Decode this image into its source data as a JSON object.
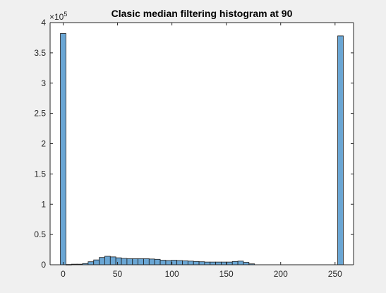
{
  "chart_data": {
    "type": "bar",
    "title": "Clasic median filtering histogram at 90",
    "xlabel": "",
    "ylabel": "",
    "xlim": [
      -12,
      267
    ],
    "ylim": [
      0,
      4
    ],
    "y_exponent_label": "×10",
    "y_exponent_power": "5",
    "x_ticks": [
      "0",
      "50",
      "100",
      "150",
      "200",
      "250"
    ],
    "x_tick_values": [
      0,
      50,
      100,
      150,
      200,
      250
    ],
    "y_ticks": [
      "0",
      "0.5",
      "1",
      "1.5",
      "2",
      "2.5",
      "3",
      "3.5",
      "4"
    ],
    "y_tick_values": [
      0,
      0.5,
      1,
      1.5,
      2,
      2.5,
      3,
      3.5,
      4
    ],
    "bin_width": 5.1,
    "bins": [
      {
        "x0": -2.55,
        "value": 3.82
      },
      {
        "x0": 2.55,
        "value": 0.005
      },
      {
        "x0": 7.65,
        "value": 0.01
      },
      {
        "x0": 12.75,
        "value": 0.01
      },
      {
        "x0": 17.85,
        "value": 0.02
      },
      {
        "x0": 22.95,
        "value": 0.05
      },
      {
        "x0": 28.05,
        "value": 0.08
      },
      {
        "x0": 33.15,
        "value": 0.12
      },
      {
        "x0": 38.25,
        "value": 0.14
      },
      {
        "x0": 43.35,
        "value": 0.13
      },
      {
        "x0": 48.45,
        "value": 0.115
      },
      {
        "x0": 53.55,
        "value": 0.105
      },
      {
        "x0": 58.65,
        "value": 0.1
      },
      {
        "x0": 63.75,
        "value": 0.1
      },
      {
        "x0": 68.85,
        "value": 0.1
      },
      {
        "x0": 73.95,
        "value": 0.1
      },
      {
        "x0": 79.05,
        "value": 0.095
      },
      {
        "x0": 84.15,
        "value": 0.09
      },
      {
        "x0": 89.25,
        "value": 0.075
      },
      {
        "x0": 94.35,
        "value": 0.07
      },
      {
        "x0": 99.45,
        "value": 0.075
      },
      {
        "x0": 104.55,
        "value": 0.07
      },
      {
        "x0": 109.65,
        "value": 0.065
      },
      {
        "x0": 114.75,
        "value": 0.06
      },
      {
        "x0": 119.85,
        "value": 0.055
      },
      {
        "x0": 124.95,
        "value": 0.05
      },
      {
        "x0": 130.05,
        "value": 0.045
      },
      {
        "x0": 135.15,
        "value": 0.045
      },
      {
        "x0": 140.25,
        "value": 0.045
      },
      {
        "x0": 145.35,
        "value": 0.045
      },
      {
        "x0": 150.45,
        "value": 0.045
      },
      {
        "x0": 155.55,
        "value": 0.055
      },
      {
        "x0": 160.65,
        "value": 0.06
      },
      {
        "x0": 165.75,
        "value": 0.04
      },
      {
        "x0": 170.85,
        "value": 0.015
      },
      {
        "x0": 252.45,
        "value": 3.78
      }
    ],
    "bar_color": "#6aa6d4",
    "bar_edge_color": "#1a1a1a",
    "grid": false
  }
}
